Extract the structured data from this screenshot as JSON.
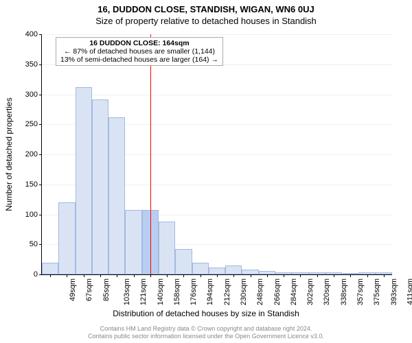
{
  "title": "16, DUDDON CLOSE, STANDISH, WIGAN, WN6 0UJ",
  "subtitle": "Size of property relative to detached houses in Standish",
  "y_axis_label": "Number of detached properties",
  "x_axis_label": "Distribution of detached houses by size in Standish",
  "footer_line1": "Contains HM Land Registry data © Crown copyright and database right 2024.",
  "footer_line2": "Contains public sector information licensed under the Open Government Licence v3.0.",
  "chart": {
    "type": "histogram",
    "ylim": [
      0,
      400
    ],
    "ytick_step": 50,
    "x_tick_labels": [
      "49sqm",
      "67sqm",
      "85sqm",
      "103sqm",
      "121sqm",
      "140sqm",
      "158sqm",
      "176sqm",
      "194sqm",
      "212sqm",
      "230sqm",
      "248sqm",
      "266sqm",
      "284sqm",
      "302sqm",
      "320sqm",
      "338sqm",
      "357sqm",
      "375sqm",
      "393sqm",
      "411sqm"
    ],
    "values": [
      20,
      120,
      312,
      292,
      262,
      108,
      108,
      88,
      42,
      20,
      12,
      15,
      8,
      6,
      4,
      3,
      4,
      3,
      0,
      4,
      3
    ],
    "bar_fill": "#d9e3f4",
    "bar_border": "#a2b9e0",
    "bar_fill_highlight": "#b8cdf0",
    "grid_color": "#efefef",
    "axis_color": "#000000",
    "background_color": "#ffffff",
    "marker": {
      "position_index": 6.5,
      "color": "#ff0000"
    },
    "annotation": {
      "line1": "16 DUDDON CLOSE: 164sqm",
      "line2": "← 87% of detached houses are smaller (1,144)",
      "line3": "13% of semi-detached houses are larger (164) →"
    }
  }
}
